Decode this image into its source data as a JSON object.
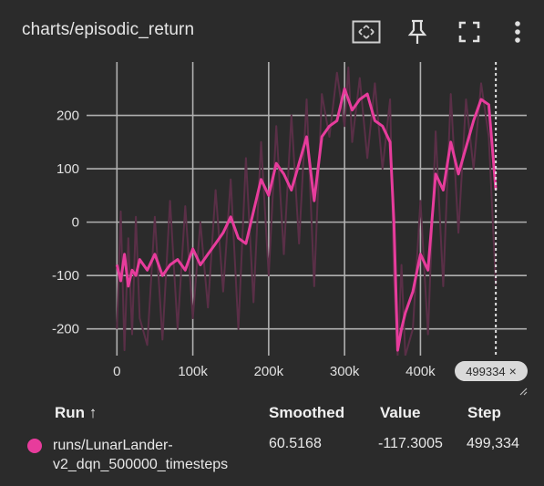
{
  "card": {
    "title": "charts/episodic_return"
  },
  "toolbar": {
    "icons": [
      "fit-domain-icon",
      "pin-icon",
      "fullscreen-icon",
      "more-vert-icon"
    ]
  },
  "colors": {
    "series": "#e73c9c",
    "raw": "#5a2f47",
    "background": "#2b2b2b",
    "grid": "#b0b0b0"
  },
  "chart_data": {
    "type": "line",
    "title": "charts/episodic_return",
    "xlabel": "",
    "ylabel": "",
    "xlim": [
      -40000,
      540000
    ],
    "ylim": [
      -250,
      300
    ],
    "x_ticks": [
      0,
      100000,
      200000,
      300000,
      400000
    ],
    "x_tick_labels": [
      "0",
      "100k",
      "200k",
      "300k",
      "400k"
    ],
    "y_ticks": [
      -200,
      -100,
      0,
      100,
      200
    ],
    "y_tick_labels": [
      "-200",
      "-100",
      "0",
      "100",
      "200"
    ],
    "grid": true,
    "series": [
      {
        "name": "runs/LunarLander-v2_dqn_500000_timesteps",
        "role": "smoothed",
        "x": [
          0,
          5000,
          10000,
          15000,
          20000,
          25000,
          30000,
          40000,
          50000,
          60000,
          70000,
          80000,
          90000,
          100000,
          110000,
          120000,
          130000,
          140000,
          150000,
          160000,
          170000,
          180000,
          190000,
          200000,
          210000,
          220000,
          230000,
          240000,
          250000,
          260000,
          270000,
          280000,
          290000,
          300000,
          305000,
          310000,
          320000,
          330000,
          340000,
          350000,
          360000,
          365000,
          370000,
          375000,
          380000,
          390000,
          400000,
          410000,
          420000,
          430000,
          440000,
          450000,
          460000,
          470000,
          480000,
          490000,
          499334
        ],
        "y": [
          -80,
          -110,
          -60,
          -120,
          -90,
          -100,
          -70,
          -90,
          -60,
          -100,
          -80,
          -70,
          -90,
          -50,
          -80,
          -60,
          -40,
          -20,
          10,
          -30,
          -40,
          20,
          80,
          50,
          110,
          90,
          60,
          110,
          160,
          40,
          160,
          180,
          190,
          250,
          230,
          210,
          230,
          240,
          190,
          180,
          150,
          0,
          -240,
          -200,
          -170,
          -130,
          -60,
          -90,
          90,
          60,
          150,
          90,
          140,
          190,
          230,
          220,
          60.5
        ]
      },
      {
        "name": "raw",
        "role": "raw",
        "x": [
          0,
          5000,
          10000,
          15000,
          20000,
          25000,
          30000,
          40000,
          50000,
          60000,
          70000,
          80000,
          90000,
          100000,
          110000,
          120000,
          130000,
          140000,
          150000,
          160000,
          170000,
          180000,
          190000,
          200000,
          210000,
          220000,
          230000,
          240000,
          250000,
          260000,
          270000,
          280000,
          290000,
          300000,
          305000,
          310000,
          320000,
          330000,
          340000,
          350000,
          360000,
          365000,
          370000,
          375000,
          380000,
          390000,
          400000,
          410000,
          420000,
          430000,
          440000,
          450000,
          460000,
          470000,
          480000,
          490000,
          499334
        ],
        "y": [
          -200,
          20,
          -240,
          -30,
          -210,
          10,
          -180,
          -230,
          10,
          -220,
          40,
          -200,
          30,
          -180,
          0,
          -160,
          60,
          -130,
          80,
          -200,
          120,
          -150,
          150,
          -100,
          180,
          -60,
          200,
          -40,
          230,
          -120,
          240,
          160,
          280,
          180,
          290,
          150,
          270,
          120,
          260,
          100,
          230,
          -100,
          -250,
          -80,
          -250,
          -200,
          40,
          -210,
          170,
          -120,
          240,
          -20,
          230,
          100,
          260,
          160,
          -117.3
        ]
      }
    ],
    "cursor_step": 499334
  },
  "cursor": {
    "label": "499334",
    "close_glyph": "×"
  },
  "table": {
    "headers": {
      "run": "Run ↑",
      "smoothed": "Smoothed",
      "value": "Value",
      "step": "Step"
    },
    "rows": [
      {
        "run": "runs/LunarLander-v2_dqn_500000_timesteps",
        "smoothed": "60.5168",
        "value": "-117.3005",
        "step": "499,334"
      }
    ]
  }
}
